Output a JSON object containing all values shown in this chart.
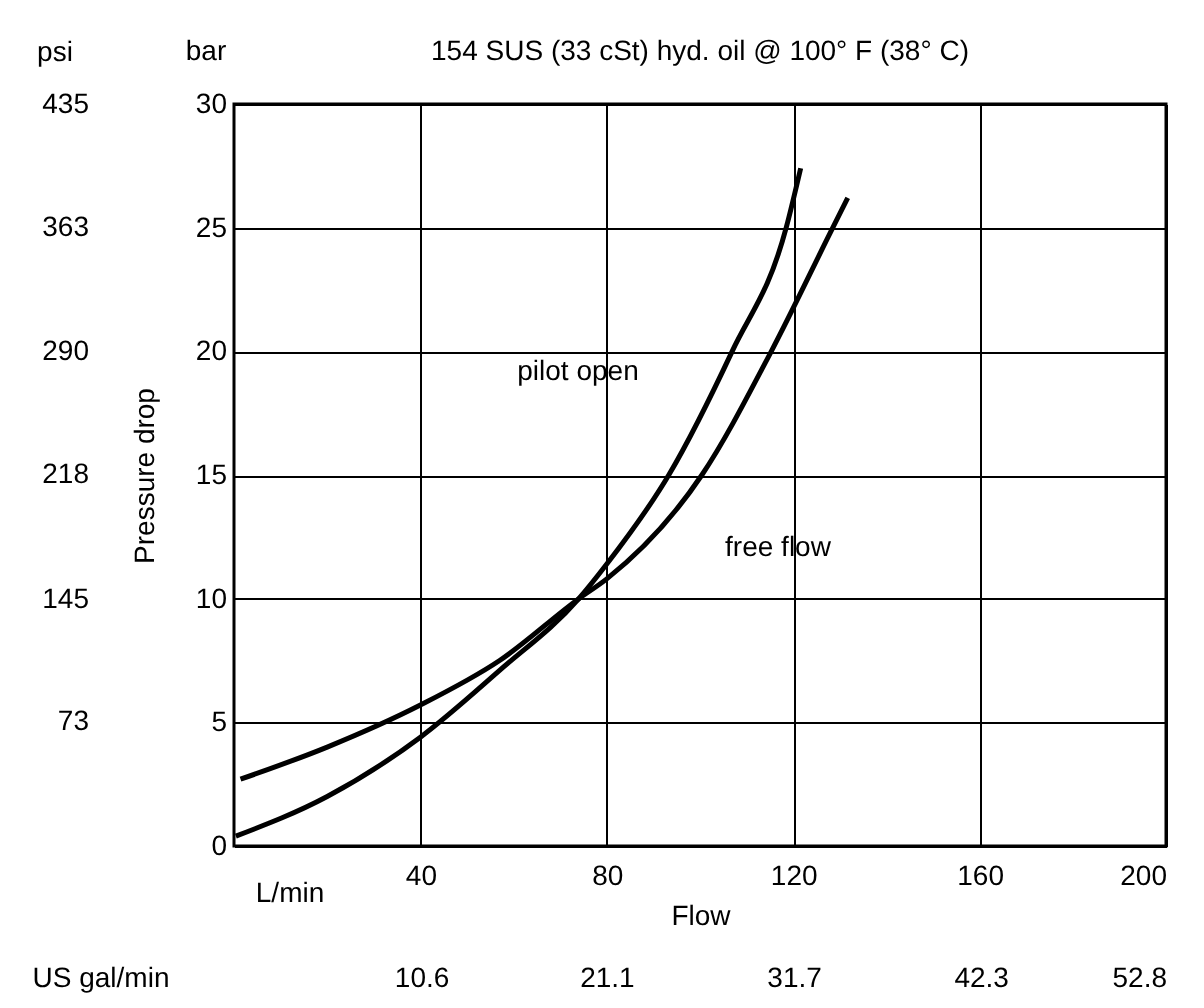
{
  "chart_data": {
    "type": "line",
    "title": "154 SUS (33 cSt) hyd. oil @ 100° F (38° C)",
    "xlabel": "Flow",
    "ylabel": "Pressure drop",
    "y2label": "psi",
    "x2label": "US gal/min",
    "annotations": [
      "bar",
      "L/min"
    ],
    "xlim": [
      0,
      200
    ],
    "xticks": [
      40,
      80,
      120,
      160,
      200
    ],
    "ylim": [
      0,
      30
    ],
    "yticks": [
      0,
      5,
      10,
      15,
      20,
      25,
      30
    ],
    "y2lim": [
      0,
      435
    ],
    "y2ticks": [
      73,
      145,
      218,
      290,
      363,
      435
    ],
    "x2lim": [
      0,
      52.8
    ],
    "x2ticks": [
      {
        "value": 10.6,
        "label": "10.6"
      },
      {
        "value": 21.1,
        "label": "21.1"
      },
      {
        "value": 31.7,
        "label": "31.7"
      },
      {
        "value": 42.3,
        "label": "42.3"
      },
      {
        "value": 52.8,
        "label": "52.8"
      }
    ],
    "grid": true,
    "legend": false,
    "line_style": "solid",
    "marker": "none",
    "series": [
      {
        "name": "pilot open",
        "color": "#000000",
        "x": [
          0.4,
          20,
          40,
          57,
          74,
          80,
          93.3,
          106.9,
          118.5,
          121.6
        ],
        "values": [
          0.4,
          2.0,
          4.4,
          7.1,
          10,
          11.4,
          15,
          20,
          25,
          27.4
        ]
      },
      {
        "name": "free flow",
        "color": "#000000",
        "x": [
          1.4,
          20,
          40,
          57,
          74,
          80,
          100.4,
          115.3,
          128.5,
          131.7
        ],
        "values": [
          2.7,
          4.0,
          5.7,
          7.5,
          10,
          10.8,
          15,
          20,
          25,
          26.2
        ]
      }
    ]
  }
}
